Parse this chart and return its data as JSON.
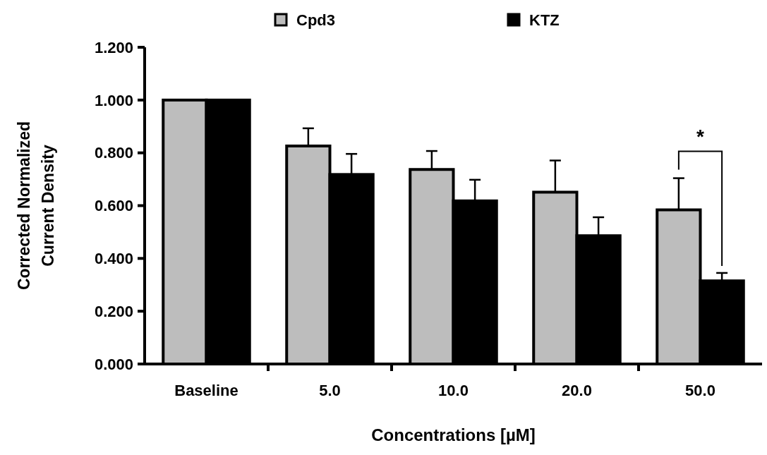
{
  "chart_data": {
    "type": "bar",
    "xlabel": "Concentrations [µM]",
    "ylabel": "Corrected Normalized Current Density",
    "categories": [
      "Baseline",
      "5.0",
      "10.0",
      "20.0",
      "50.0"
    ],
    "series": [
      {
        "name": "Cpd3",
        "color": "#bdbdbd",
        "values": [
          1.0,
          0.826,
          0.737,
          0.651,
          0.584
        ],
        "errors": [
          null,
          0.067,
          0.07,
          0.12,
          0.12
        ]
      },
      {
        "name": "KTZ",
        "color": "#000000",
        "values": [
          1.0,
          0.718,
          0.618,
          0.486,
          0.315
        ],
        "errors": [
          null,
          0.078,
          0.08,
          0.07,
          0.03
        ]
      }
    ],
    "ylim": [
      0,
      1.2
    ],
    "yticks": [
      {
        "value": 0,
        "label": "0.000"
      },
      {
        "value": 0.2,
        "label": "0.200"
      },
      {
        "value": 0.4,
        "label": "0.400"
      },
      {
        "value": 0.6,
        "label": "0.600"
      },
      {
        "value": 0.8,
        "label": "0.800"
      },
      {
        "value": 1.0,
        "label": "1.000"
      },
      {
        "value": 1.2,
        "label": "1.200"
      }
    ],
    "legend": "top",
    "annotations": [
      "*"
    ]
  }
}
